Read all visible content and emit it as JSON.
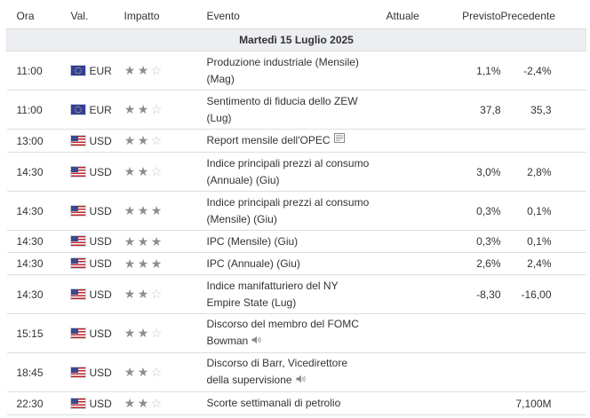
{
  "headers": {
    "time": "Ora",
    "currency": "Val.",
    "impact": "Impatto",
    "event": "Evento",
    "actual": "Attuale",
    "forecast": "Previsto",
    "previous": "Precedente"
  },
  "date_label": "Martedì 15 Luglio 2025",
  "colors": {
    "header_bg": "#eceef1",
    "star_on": "#8d8d8d",
    "star_off": "#c6c6c6"
  },
  "rows": [
    {
      "time": "11:00",
      "flag_icon": "eu-flag-icon",
      "currency": "EUR",
      "impact": 2,
      "event": "Produzione industriale (Mensile) (Mag)",
      "actual": "",
      "forecast": "1,1%",
      "previous": "-2,4%",
      "icon": ""
    },
    {
      "time": "11:00",
      "flag_icon": "eu-flag-icon",
      "currency": "EUR",
      "impact": 2,
      "event": "Sentimento di fiducia dello ZEW (Lug)",
      "actual": "",
      "forecast": "37,8",
      "previous": "35,3",
      "icon": ""
    },
    {
      "time": "13:00",
      "flag_icon": "us-flag-icon",
      "currency": "USD",
      "impact": 2,
      "event": "Report mensile dell'OPEC",
      "actual": "",
      "forecast": "",
      "previous": "",
      "icon": "document-icon"
    },
    {
      "time": "14:30",
      "flag_icon": "us-flag-icon",
      "currency": "USD",
      "impact": 2,
      "event": "Indice principali prezzi al consumo (Annuale) (Giu)",
      "actual": "",
      "forecast": "3,0%",
      "previous": "2,8%",
      "icon": ""
    },
    {
      "time": "14:30",
      "flag_icon": "us-flag-icon",
      "currency": "USD",
      "impact": 3,
      "event": "Indice principali prezzi al consumo (Mensile) (Giu)",
      "actual": "",
      "forecast": "0,3%",
      "previous": "0,1%",
      "icon": ""
    },
    {
      "time": "14:30",
      "flag_icon": "us-flag-icon",
      "currency": "USD",
      "impact": 3,
      "event": "IPC (Mensile) (Giu)",
      "actual": "",
      "forecast": "0,3%",
      "previous": "0,1%",
      "icon": ""
    },
    {
      "time": "14:30",
      "flag_icon": "us-flag-icon",
      "currency": "USD",
      "impact": 3,
      "event": "IPC (Annuale) (Giu)",
      "actual": "",
      "forecast": "2,6%",
      "previous": "2,4%",
      "icon": ""
    },
    {
      "time": "14:30",
      "flag_icon": "us-flag-icon",
      "currency": "USD",
      "impact": 2,
      "event": "Indice manifatturiero del NY Empire State (Lug)",
      "actual": "",
      "forecast": "-8,30",
      "previous": "-16,00",
      "icon": ""
    },
    {
      "time": "15:15",
      "flag_icon": "us-flag-icon",
      "currency": "USD",
      "impact": 2,
      "event": "Discorso del membro del FOMC Bowman",
      "actual": "",
      "forecast": "",
      "previous": "",
      "icon": "speaker-icon"
    },
    {
      "time": "18:45",
      "flag_icon": "us-flag-icon",
      "currency": "USD",
      "impact": 2,
      "event": "Discorso di Barr, Vicedirettore della supervisione",
      "actual": "",
      "forecast": "",
      "previous": "",
      "icon": "speaker-icon"
    },
    {
      "time": "22:30",
      "flag_icon": "us-flag-icon",
      "currency": "USD",
      "impact": 2,
      "event": "Scorte settimanali di petrolio",
      "actual": "",
      "forecast": "",
      "previous": "7,100M",
      "icon": ""
    }
  ]
}
